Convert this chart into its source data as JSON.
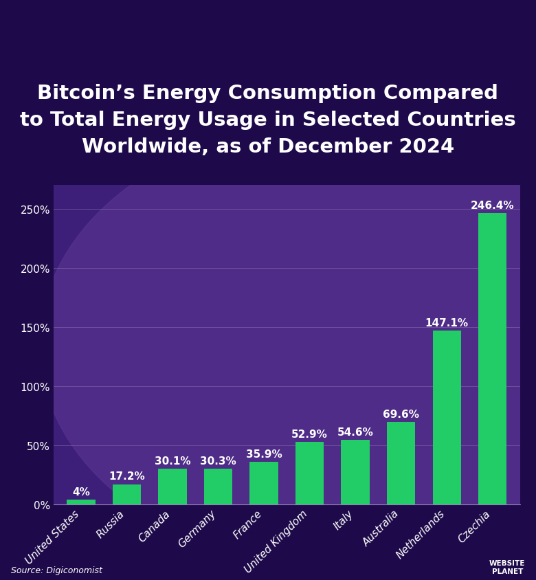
{
  "title": "Bitcoin’s Energy Consumption Compared\nto Total Energy Usage in Selected Countries\nWorldwide, as of December 2024",
  "categories": [
    "United States",
    "Russia",
    "Canada",
    "Germany",
    "France",
    "United Kingdom",
    "Italy",
    "Australia",
    "Netherlands",
    "Czechia"
  ],
  "values": [
    4.0,
    17.2,
    30.1,
    30.3,
    35.9,
    52.9,
    54.6,
    69.6,
    147.1,
    246.4
  ],
  "value_labels": [
    "4%",
    "17.2%",
    "30.1%",
    "30.3%",
    "35.9%",
    "52.9%",
    "54.6%",
    "69.6%",
    "147.1%",
    "246.4%"
  ],
  "bar_color": "#22cc66",
  "bg_color_dark": "#1e0a4a",
  "bg_color_plot": "#3d1f7a",
  "bg_ellipse_color": "#5a3590",
  "text_color": "#ffffff",
  "grid_color": "#9980bb",
  "title_fontsize": 21,
  "label_fontsize": 11,
  "tick_fontsize": 11,
  "value_fontsize": 11,
  "ylim": [
    0,
    270
  ],
  "yticks": [
    0,
    50,
    100,
    150,
    200,
    250
  ],
  "source_text": "Source: Digiconomist"
}
